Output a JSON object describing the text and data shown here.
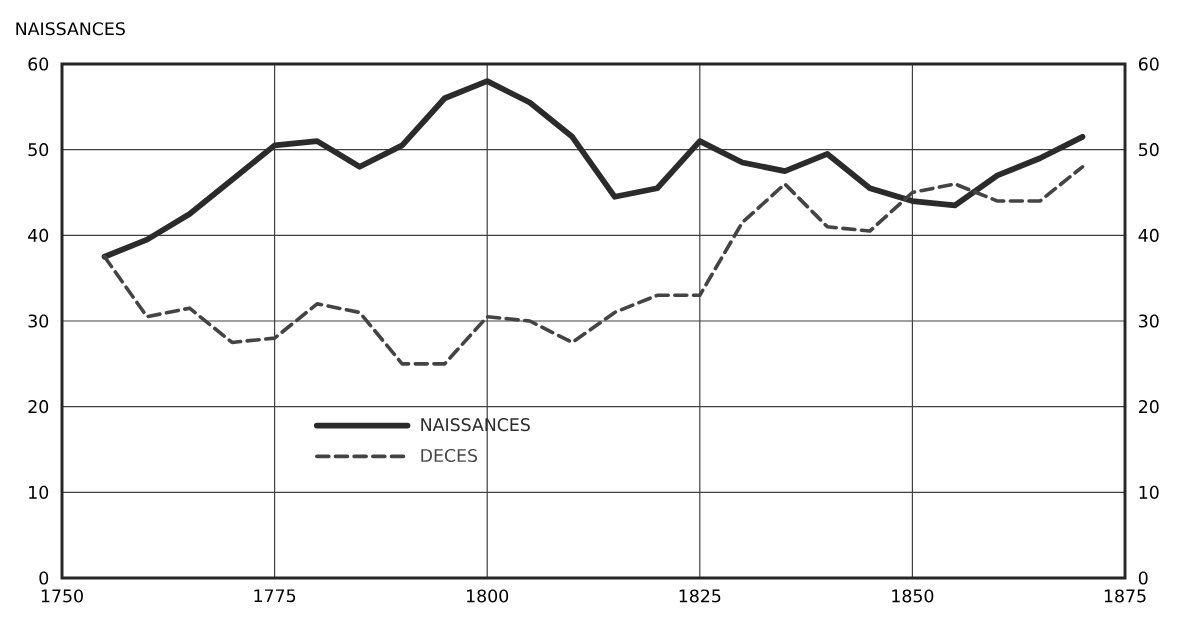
{
  "chart_data": {
    "type": "line",
    "ylabel": "NAISSANCES",
    "x": [
      1755,
      1760,
      1765,
      1770,
      1775,
      1780,
      1785,
      1790,
      1795,
      1800,
      1805,
      1810,
      1815,
      1820,
      1825,
      1830,
      1835,
      1840,
      1845,
      1850,
      1855,
      1860,
      1865,
      1870
    ],
    "series": [
      {
        "name": "NAISSANCES",
        "color": "#2b2b2b",
        "line_style": "solid",
        "values": [
          37.5,
          39.5,
          42.5,
          46.5,
          50.5,
          51,
          48,
          50.5,
          56,
          58,
          55.5,
          51.5,
          44.5,
          45.5,
          51,
          48.5,
          47.5,
          49.5,
          45.5,
          44,
          43.5,
          47,
          49,
          51.5
        ]
      },
      {
        "name": "DECES",
        "color": "#444444",
        "line_style": "dashed",
        "values": [
          37.5,
          30.5,
          31.5,
          27.5,
          28,
          32,
          31,
          25,
          25,
          30.5,
          30,
          27.5,
          31,
          33,
          33,
          41.5,
          46,
          41,
          40.5,
          45,
          46,
          44,
          44,
          48
        ]
      }
    ],
    "xlim": [
      1750,
      1875
    ],
    "xticks": [
      1750,
      1775,
      1800,
      1825,
      1850,
      1875
    ],
    "ylim": [
      0,
      60
    ],
    "yticks": [
      0,
      10,
      20,
      30,
      40,
      50,
      60
    ],
    "y2lim": [
      0,
      60
    ],
    "y2ticks": [
      0,
      10,
      20,
      30,
      40,
      50,
      60
    ],
    "grid": true,
    "legend": "bottom left"
  }
}
